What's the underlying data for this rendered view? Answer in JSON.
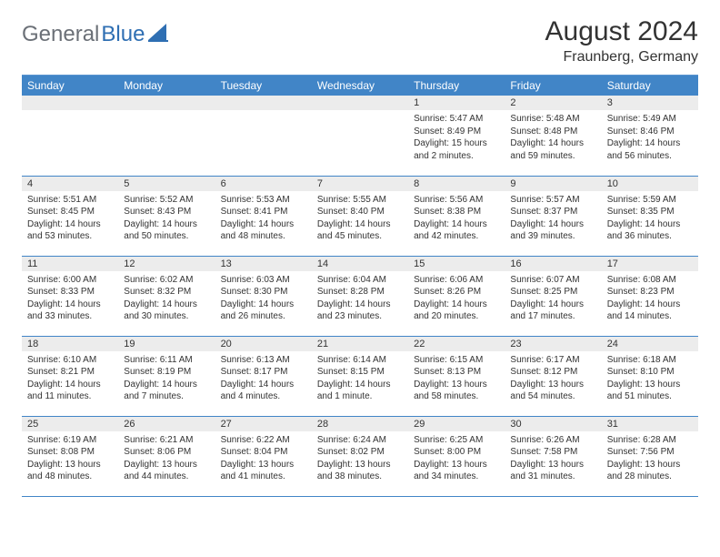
{
  "brand": {
    "gray": "General",
    "blue": "Blue"
  },
  "title": "August 2024",
  "location": "Fraunberg, Germany",
  "colors": {
    "header_bg": "#4185c7",
    "header_text": "#ffffff",
    "daynum_bg": "#ececec",
    "border": "#4185c7",
    "logo_gray": "#6b7077",
    "logo_blue": "#2f6fb3",
    "text": "#333333",
    "page_bg": "#ffffff"
  },
  "day_headers": [
    "Sunday",
    "Monday",
    "Tuesday",
    "Wednesday",
    "Thursday",
    "Friday",
    "Saturday"
  ],
  "weeks": [
    [
      {
        "day": "",
        "sunrise": "",
        "sunset": "",
        "daylight": ""
      },
      {
        "day": "",
        "sunrise": "",
        "sunset": "",
        "daylight": ""
      },
      {
        "day": "",
        "sunrise": "",
        "sunset": "",
        "daylight": ""
      },
      {
        "day": "",
        "sunrise": "",
        "sunset": "",
        "daylight": ""
      },
      {
        "day": "1",
        "sunrise": "Sunrise: 5:47 AM",
        "sunset": "Sunset: 8:49 PM",
        "daylight": "Daylight: 15 hours and 2 minutes."
      },
      {
        "day": "2",
        "sunrise": "Sunrise: 5:48 AM",
        "sunset": "Sunset: 8:48 PM",
        "daylight": "Daylight: 14 hours and 59 minutes."
      },
      {
        "day": "3",
        "sunrise": "Sunrise: 5:49 AM",
        "sunset": "Sunset: 8:46 PM",
        "daylight": "Daylight: 14 hours and 56 minutes."
      }
    ],
    [
      {
        "day": "4",
        "sunrise": "Sunrise: 5:51 AM",
        "sunset": "Sunset: 8:45 PM",
        "daylight": "Daylight: 14 hours and 53 minutes."
      },
      {
        "day": "5",
        "sunrise": "Sunrise: 5:52 AM",
        "sunset": "Sunset: 8:43 PM",
        "daylight": "Daylight: 14 hours and 50 minutes."
      },
      {
        "day": "6",
        "sunrise": "Sunrise: 5:53 AM",
        "sunset": "Sunset: 8:41 PM",
        "daylight": "Daylight: 14 hours and 48 minutes."
      },
      {
        "day": "7",
        "sunrise": "Sunrise: 5:55 AM",
        "sunset": "Sunset: 8:40 PM",
        "daylight": "Daylight: 14 hours and 45 minutes."
      },
      {
        "day": "8",
        "sunrise": "Sunrise: 5:56 AM",
        "sunset": "Sunset: 8:38 PM",
        "daylight": "Daylight: 14 hours and 42 minutes."
      },
      {
        "day": "9",
        "sunrise": "Sunrise: 5:57 AM",
        "sunset": "Sunset: 8:37 PM",
        "daylight": "Daylight: 14 hours and 39 minutes."
      },
      {
        "day": "10",
        "sunrise": "Sunrise: 5:59 AM",
        "sunset": "Sunset: 8:35 PM",
        "daylight": "Daylight: 14 hours and 36 minutes."
      }
    ],
    [
      {
        "day": "11",
        "sunrise": "Sunrise: 6:00 AM",
        "sunset": "Sunset: 8:33 PM",
        "daylight": "Daylight: 14 hours and 33 minutes."
      },
      {
        "day": "12",
        "sunrise": "Sunrise: 6:02 AM",
        "sunset": "Sunset: 8:32 PM",
        "daylight": "Daylight: 14 hours and 30 minutes."
      },
      {
        "day": "13",
        "sunrise": "Sunrise: 6:03 AM",
        "sunset": "Sunset: 8:30 PM",
        "daylight": "Daylight: 14 hours and 26 minutes."
      },
      {
        "day": "14",
        "sunrise": "Sunrise: 6:04 AM",
        "sunset": "Sunset: 8:28 PM",
        "daylight": "Daylight: 14 hours and 23 minutes."
      },
      {
        "day": "15",
        "sunrise": "Sunrise: 6:06 AM",
        "sunset": "Sunset: 8:26 PM",
        "daylight": "Daylight: 14 hours and 20 minutes."
      },
      {
        "day": "16",
        "sunrise": "Sunrise: 6:07 AM",
        "sunset": "Sunset: 8:25 PM",
        "daylight": "Daylight: 14 hours and 17 minutes."
      },
      {
        "day": "17",
        "sunrise": "Sunrise: 6:08 AM",
        "sunset": "Sunset: 8:23 PM",
        "daylight": "Daylight: 14 hours and 14 minutes."
      }
    ],
    [
      {
        "day": "18",
        "sunrise": "Sunrise: 6:10 AM",
        "sunset": "Sunset: 8:21 PM",
        "daylight": "Daylight: 14 hours and 11 minutes."
      },
      {
        "day": "19",
        "sunrise": "Sunrise: 6:11 AM",
        "sunset": "Sunset: 8:19 PM",
        "daylight": "Daylight: 14 hours and 7 minutes."
      },
      {
        "day": "20",
        "sunrise": "Sunrise: 6:13 AM",
        "sunset": "Sunset: 8:17 PM",
        "daylight": "Daylight: 14 hours and 4 minutes."
      },
      {
        "day": "21",
        "sunrise": "Sunrise: 6:14 AM",
        "sunset": "Sunset: 8:15 PM",
        "daylight": "Daylight: 14 hours and 1 minute."
      },
      {
        "day": "22",
        "sunrise": "Sunrise: 6:15 AM",
        "sunset": "Sunset: 8:13 PM",
        "daylight": "Daylight: 13 hours and 58 minutes."
      },
      {
        "day": "23",
        "sunrise": "Sunrise: 6:17 AM",
        "sunset": "Sunset: 8:12 PM",
        "daylight": "Daylight: 13 hours and 54 minutes."
      },
      {
        "day": "24",
        "sunrise": "Sunrise: 6:18 AM",
        "sunset": "Sunset: 8:10 PM",
        "daylight": "Daylight: 13 hours and 51 minutes."
      }
    ],
    [
      {
        "day": "25",
        "sunrise": "Sunrise: 6:19 AM",
        "sunset": "Sunset: 8:08 PM",
        "daylight": "Daylight: 13 hours and 48 minutes."
      },
      {
        "day": "26",
        "sunrise": "Sunrise: 6:21 AM",
        "sunset": "Sunset: 8:06 PM",
        "daylight": "Daylight: 13 hours and 44 minutes."
      },
      {
        "day": "27",
        "sunrise": "Sunrise: 6:22 AM",
        "sunset": "Sunset: 8:04 PM",
        "daylight": "Daylight: 13 hours and 41 minutes."
      },
      {
        "day": "28",
        "sunrise": "Sunrise: 6:24 AM",
        "sunset": "Sunset: 8:02 PM",
        "daylight": "Daylight: 13 hours and 38 minutes."
      },
      {
        "day": "29",
        "sunrise": "Sunrise: 6:25 AM",
        "sunset": "Sunset: 8:00 PM",
        "daylight": "Daylight: 13 hours and 34 minutes."
      },
      {
        "day": "30",
        "sunrise": "Sunrise: 6:26 AM",
        "sunset": "Sunset: 7:58 PM",
        "daylight": "Daylight: 13 hours and 31 minutes."
      },
      {
        "day": "31",
        "sunrise": "Sunrise: 6:28 AM",
        "sunset": "Sunset: 7:56 PM",
        "daylight": "Daylight: 13 hours and 28 minutes."
      }
    ]
  ]
}
